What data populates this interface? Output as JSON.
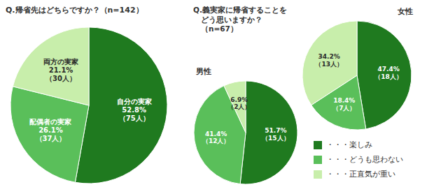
{
  "chart_data": [
    {
      "type": "pie",
      "title": "Q.帰省先はどちらですか？（n=142）",
      "values": [
        52.8,
        26.1,
        21.1
      ],
      "value_labels": [
        "自分の実家\n52.8%\n（75人）",
        "配偶者の実家\n26.1%\n（37人）",
        "両方の実家\n21.1%\n（30人）"
      ],
      "colors": [
        "#1f7a1f",
        "#5abf5a",
        "#c8eeab"
      ],
      "data_labels": true
    },
    {
      "type": "pie",
      "title": "Q.義実家に帰省することを\n　どう思いますか？\n　（n=67）",
      "subtitle": "男性",
      "categories": [
        "・・・楽しみ",
        "・・・どうも思わない",
        "・・・正直気が重い"
      ],
      "values": [
        51.7,
        41.4,
        6.9
      ],
      "value_labels": [
        "51.7%\n（15人）",
        "41.4%\n（12人）",
        "6.9%\n（2人）"
      ],
      "colors": [
        "#1f7a1f",
        "#5abf5a",
        "#c8eeab"
      ],
      "data_labels": true,
      "legend": "right"
    },
    {
      "type": "pie",
      "subtitle": "女性",
      "values": [
        47.4,
        18.4,
        34.2
      ],
      "value_labels": [
        "47.4%\n（18人）",
        "18.4%\n（7人）",
        "34.2%\n（13人）"
      ],
      "colors": [
        "#1f7a1f",
        "#5abf5a",
        "#c8eeab"
      ],
      "data_labels": true
    }
  ]
}
